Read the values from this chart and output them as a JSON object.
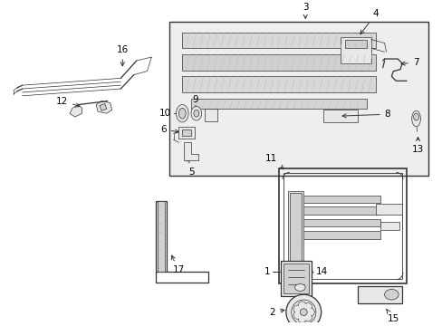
{
  "background_color": "#ffffff",
  "fig_width": 4.89,
  "fig_height": 3.6,
  "dpi": 100,
  "gray": "#333333",
  "light_gray": "#bbbbbb",
  "fill_light": "#e8e8e8",
  "fill_mid": "#d0d0d0",
  "box_bg": "#eeeeee"
}
